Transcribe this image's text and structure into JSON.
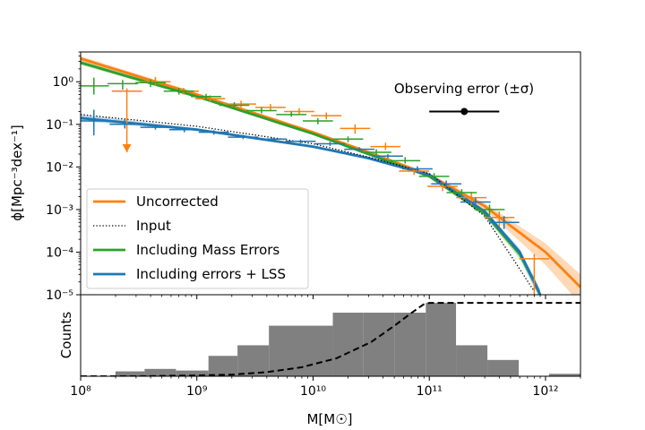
{
  "chart_data": [
    {
      "panel": "main",
      "type": "line",
      "x_scale": "log",
      "y_scale": "log",
      "xlim": [
        100000000.0,
        2000000000000.0
      ],
      "ylim": [
        1e-05,
        5
      ],
      "ylabel": "ϕ[Mpc⁻³dex⁻¹]",
      "yticks": [
        {
          "value": 1,
          "label": "10⁰"
        },
        {
          "value": 0.1,
          "label": "10⁻¹"
        },
        {
          "value": 0.01,
          "label": "10⁻²"
        },
        {
          "value": 0.001,
          "label": "10⁻³"
        },
        {
          "value": 0.0001,
          "label": "10⁻⁴"
        },
        {
          "value": 1e-05,
          "label": "10⁻⁵"
        }
      ],
      "annotation": {
        "text": "Observing error (±σ)",
        "center_x": 200000000000.0,
        "center_y": 0.2,
        "err_low": 100000000000.0,
        "err_high": 400000000000.0
      },
      "legend": {
        "location": "lower-left"
      },
      "series": [
        {
          "name": "Uncorrected",
          "style": "solid",
          "color": "#ff7f0e",
          "x": [
            100000000.0,
            1000000000.0,
            10000000000.0,
            30000000000.0,
            100000000000.0,
            300000000000.0,
            1000000000000.0,
            2000000000000.0
          ],
          "y": [
            3.5,
            0.5,
            0.065,
            0.022,
            0.0065,
            0.0012,
            0.0001,
            1.5e-05
          ],
          "band_low": [
            3.0,
            0.45,
            0.06,
            0.02,
            0.006,
            0.001,
            5e-05,
            6e-06
          ],
          "band_high": [
            4.0,
            0.55,
            0.07,
            0.024,
            0.007,
            0.0014,
            0.00016,
            3e-05
          ]
        },
        {
          "name": "Input",
          "style": "dotted",
          "color": "#000000",
          "x": [
            100000000.0,
            1000000000.0,
            10000000000.0,
            30000000000.0,
            100000000000.0,
            300000000000.0,
            600000000000.0,
            800000000000.0
          ],
          "y": [
            0.17,
            0.09,
            0.035,
            0.017,
            0.007,
            0.0007,
            4e-05,
            1.2e-05
          ]
        },
        {
          "name": "Including Mass Errors",
          "style": "solid",
          "color": "#2ca02c",
          "x": [
            100000000.0,
            1000000000.0,
            10000000000.0,
            30000000000.0,
            100000000000.0,
            300000000000.0,
            600000000000.0,
            800000000000.0,
            900000000000.0
          ],
          "y": [
            2.8,
            0.45,
            0.06,
            0.02,
            0.006,
            0.0008,
            9e-05,
            2e-05,
            1e-05
          ],
          "band_low": [
            2.5,
            0.42,
            0.056,
            0.019,
            0.0056,
            0.0007,
            7e-05,
            1.5e-05,
            8e-06
          ],
          "band_high": [
            3.2,
            0.48,
            0.064,
            0.021,
            0.0064,
            0.0009,
            0.00011,
            2.5e-05,
            1.3e-05
          ]
        },
        {
          "name": "Including errors + LSS",
          "style": "solid",
          "color": "#1f77b4",
          "x": [
            100000000.0,
            1000000000.0,
            10000000000.0,
            30000000000.0,
            100000000000.0,
            300000000000.0,
            600000000000.0,
            800000000000.0,
            900000000000.0
          ],
          "y": [
            0.14,
            0.075,
            0.03,
            0.016,
            0.0065,
            0.0009,
            0.0001,
            2e-05,
            1e-05
          ],
          "band_low": [
            0.12,
            0.07,
            0.028,
            0.015,
            0.006,
            0.0008,
            8e-05,
            1.5e-05,
            8e-06
          ],
          "band_high": [
            0.17,
            0.08,
            0.032,
            0.017,
            0.007,
            0.001,
            0.00012,
            2.5e-05,
            1.3e-05
          ]
        }
      ],
      "points": [
        {
          "series": "Uncorrected",
          "color": "#ff7f0e",
          "x": [
            250000000.0,
            440000000.0,
            770000000.0,
            1300000000.0,
            2400000000.0,
            4300000000.0,
            7600000000.0,
            13000000000.0,
            23000000000.0,
            42000000000.0,
            74000000000.0,
            130000000000.0,
            230000000000.0,
            400000000000.0
          ],
          "y": [
            0.6,
            1.0,
            0.6,
            0.4,
            0.3,
            0.25,
            0.2,
            0.16,
            0.08,
            0.03,
            0.008,
            0.0035,
            0.0019,
            0.00065
          ],
          "xerr": 0.13,
          "y_lower": [
            0.022,
            0.8,
            0.5,
            0.33,
            0.25,
            0.21,
            0.17,
            0.13,
            0.06,
            0.025,
            0.0065,
            0.0027,
            0.0013,
            0.0004
          ],
          "y_upper": [
            0.7,
            1.3,
            0.72,
            0.48,
            0.36,
            0.3,
            0.24,
            0.19,
            0.1,
            0.037,
            0.0095,
            0.0044,
            0.0026,
            0.0009
          ]
        },
        {
          "series": "Uncorrected",
          "color": "#ff7f0e",
          "x": [
            800000000000.0
          ],
          "y": [
            7e-05
          ],
          "xerr": 0.13,
          "y_lower": [
            1e-05
          ],
          "y_upper": [
            9e-05
          ]
        },
        {
          "series": "Including Mass Errors",
          "color": "#2ca02c",
          "x": [
            130000000.0,
            230000000.0,
            400000000.0,
            700000000.0,
            1200000000.0,
            2100000000.0,
            3600000000.0,
            6500000000.0,
            11000000000.0,
            20000000000.0,
            35000000000.0,
            62000000000.0,
            110000000000.0,
            190000000000.0,
            330000000000.0
          ],
          "y": [
            0.8,
            0.9,
            0.95,
            0.6,
            0.45,
            0.28,
            0.21,
            0.17,
            0.12,
            0.045,
            0.022,
            0.014,
            0.006,
            0.0025,
            0.001
          ],
          "xerr": 0.13,
          "y_lower": [
            0.5,
            0.65,
            0.75,
            0.5,
            0.38,
            0.24,
            0.18,
            0.15,
            0.1,
            0.038,
            0.019,
            0.012,
            0.005,
            0.002,
            0.0007
          ],
          "y_upper": [
            1.25,
            1.1,
            1.15,
            0.72,
            0.52,
            0.33,
            0.25,
            0.2,
            0.14,
            0.052,
            0.026,
            0.017,
            0.0072,
            0.003,
            0.0013
          ]
        },
        {
          "series": "Including errors + LSS",
          "color": "#1f77b4",
          "x": [
            130000000.0,
            240000000.0,
            440000000.0,
            780000000.0,
            1400000000.0,
            2500000000.0,
            4400000000.0,
            7800000000.0,
            14000000000.0,
            25000000000.0,
            44000000000.0,
            79000000000.0,
            140000000000.0,
            250000000000.0,
            440000000000.0
          ],
          "y": [
            0.12,
            0.1,
            0.085,
            0.075,
            0.065,
            0.05,
            0.045,
            0.04,
            0.035,
            0.026,
            0.018,
            0.009,
            0.004,
            0.0015,
            0.0005
          ],
          "xerr": 0.13,
          "y_lower": [
            0.055,
            0.08,
            0.075,
            0.065,
            0.057,
            0.045,
            0.04,
            0.036,
            0.031,
            0.023,
            0.016,
            0.0078,
            0.0033,
            0.0012,
            0.00035
          ],
          "y_upper": [
            0.22,
            0.13,
            0.097,
            0.085,
            0.073,
            0.056,
            0.05,
            0.044,
            0.039,
            0.029,
            0.02,
            0.0104,
            0.0048,
            0.0019,
            0.0007
          ]
        }
      ]
    },
    {
      "panel": "bottom",
      "type": "bar",
      "x_scale": "log",
      "xlim": [
        100000000.0,
        2000000000000.0
      ],
      "xlabel": "M[M☉]",
      "ylabel": "Counts",
      "xticks": [
        {
          "value": 100000000.0,
          "label": "10⁸"
        },
        {
          "value": 1000000000.0,
          "label": "10⁹"
        },
        {
          "value": 10000000000.0,
          "label": "10¹⁰"
        },
        {
          "value": 100000000000.0,
          "label": "10¹¹"
        },
        {
          "value": 1000000000000.0,
          "label": "10¹²"
        }
      ],
      "histogram": {
        "color": "#808080",
        "log_edges": [
          8.3,
          8.55,
          8.82,
          9.1,
          9.35,
          9.62,
          9.9,
          10.17,
          10.43,
          10.7,
          10.97,
          11.23,
          11.5,
          11.77,
          12.03,
          12.3
        ],
        "heights": [
          0.06,
          0.09,
          0.07,
          0.25,
          0.38,
          0.62,
          0.62,
          0.78,
          0.78,
          0.78,
          0.9,
          0.38,
          0.2,
          0,
          0.03
        ]
      },
      "selection_curve": {
        "style": "dashed",
        "color": "#000000",
        "log_x": [
          8.0,
          8.5,
          9.0,
          9.3,
          9.6,
          9.9,
          10.2,
          10.5,
          10.7,
          10.85,
          10.95,
          11.0,
          11.1,
          11.5,
          12.3
        ],
        "fraction": [
          0.0,
          0.0,
          0.01,
          0.02,
          0.05,
          0.11,
          0.22,
          0.42,
          0.62,
          0.78,
          0.88,
          0.9,
          0.9,
          0.9,
          0.9
        ]
      }
    }
  ]
}
